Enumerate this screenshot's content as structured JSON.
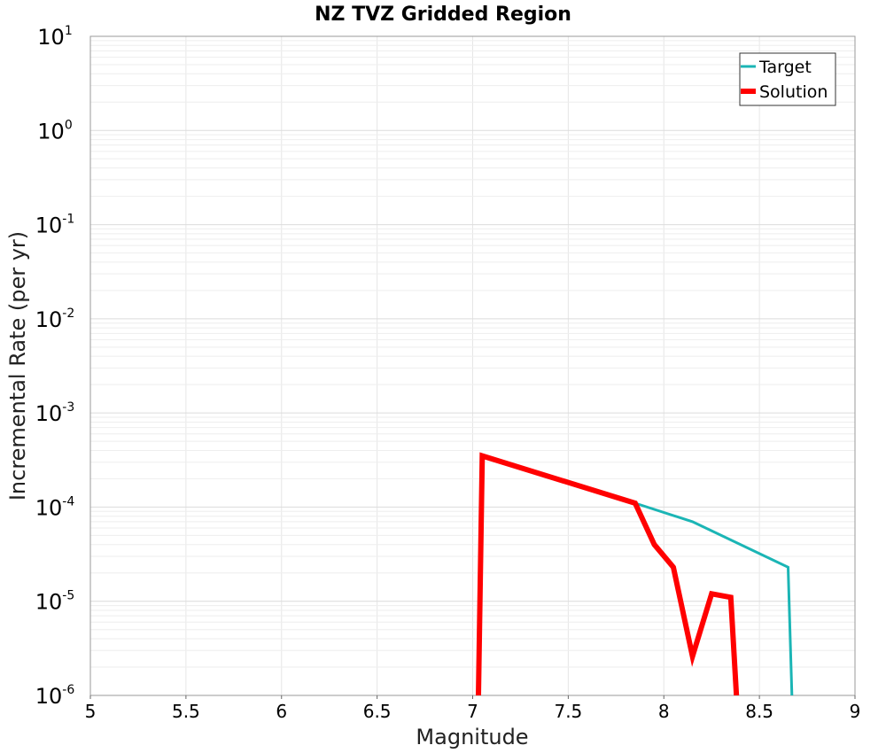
{
  "chart_data": {
    "type": "line",
    "title": "NZ TVZ Gridded Region",
    "xlabel": "Magnitude",
    "ylabel": "Incremental Rate (per yr)",
    "xscale": "linear",
    "yscale": "log",
    "xlim": [
      5,
      9
    ],
    "ylim": [
      1e-06,
      10
    ],
    "xticks": [
      5,
      5.5,
      6,
      6.5,
      7,
      7.5,
      8,
      8.5,
      9
    ],
    "xtick_labels": [
      "5",
      "5.5",
      "6",
      "6.5",
      "7",
      "7.5",
      "8",
      "8.5",
      "9"
    ],
    "yticks": [
      {
        "base": "10",
        "exp": "1",
        "value": 10
      },
      {
        "base": "10",
        "exp": "0",
        "value": 1
      },
      {
        "base": "10",
        "exp": "-1",
        "value": 0.1
      },
      {
        "base": "10",
        "exp": "-2",
        "value": 0.01
      },
      {
        "base": "10",
        "exp": "-3",
        "value": 0.001
      },
      {
        "base": "10",
        "exp": "-4",
        "value": 0.0001
      },
      {
        "base": "10",
        "exp": "-5",
        "value": 1e-05
      },
      {
        "base": "10",
        "exp": "-6",
        "value": 1e-06
      }
    ],
    "grid": true,
    "legend_position": "top-right",
    "series": [
      {
        "name": "Target",
        "color": "#1bb5b5",
        "line_width": 3,
        "points": [
          {
            "x": 7.03,
            "y": 1e-06
          },
          {
            "x": 7.05,
            "y": 0.00035
          },
          {
            "x": 7.85,
            "y": 0.00011
          },
          {
            "x": 8.15,
            "y": 7e-05
          },
          {
            "x": 8.65,
            "y": 2.3e-05
          },
          {
            "x": 8.67,
            "y": 1e-06
          }
        ]
      },
      {
        "name": "Solution",
        "color": "#ff0000",
        "line_width": 6,
        "points": [
          {
            "x": 7.03,
            "y": 1e-06
          },
          {
            "x": 7.05,
            "y": 0.00035
          },
          {
            "x": 7.85,
            "y": 0.00011
          },
          {
            "x": 7.95,
            "y": 4e-05
          },
          {
            "x": 8.05,
            "y": 2.3e-05
          },
          {
            "x": 8.15,
            "y": 2.6e-06
          },
          {
            "x": 8.25,
            "y": 1.2e-05
          },
          {
            "x": 8.35,
            "y": 1.1e-05
          },
          {
            "x": 8.38,
            "y": 1e-06
          }
        ]
      }
    ]
  }
}
